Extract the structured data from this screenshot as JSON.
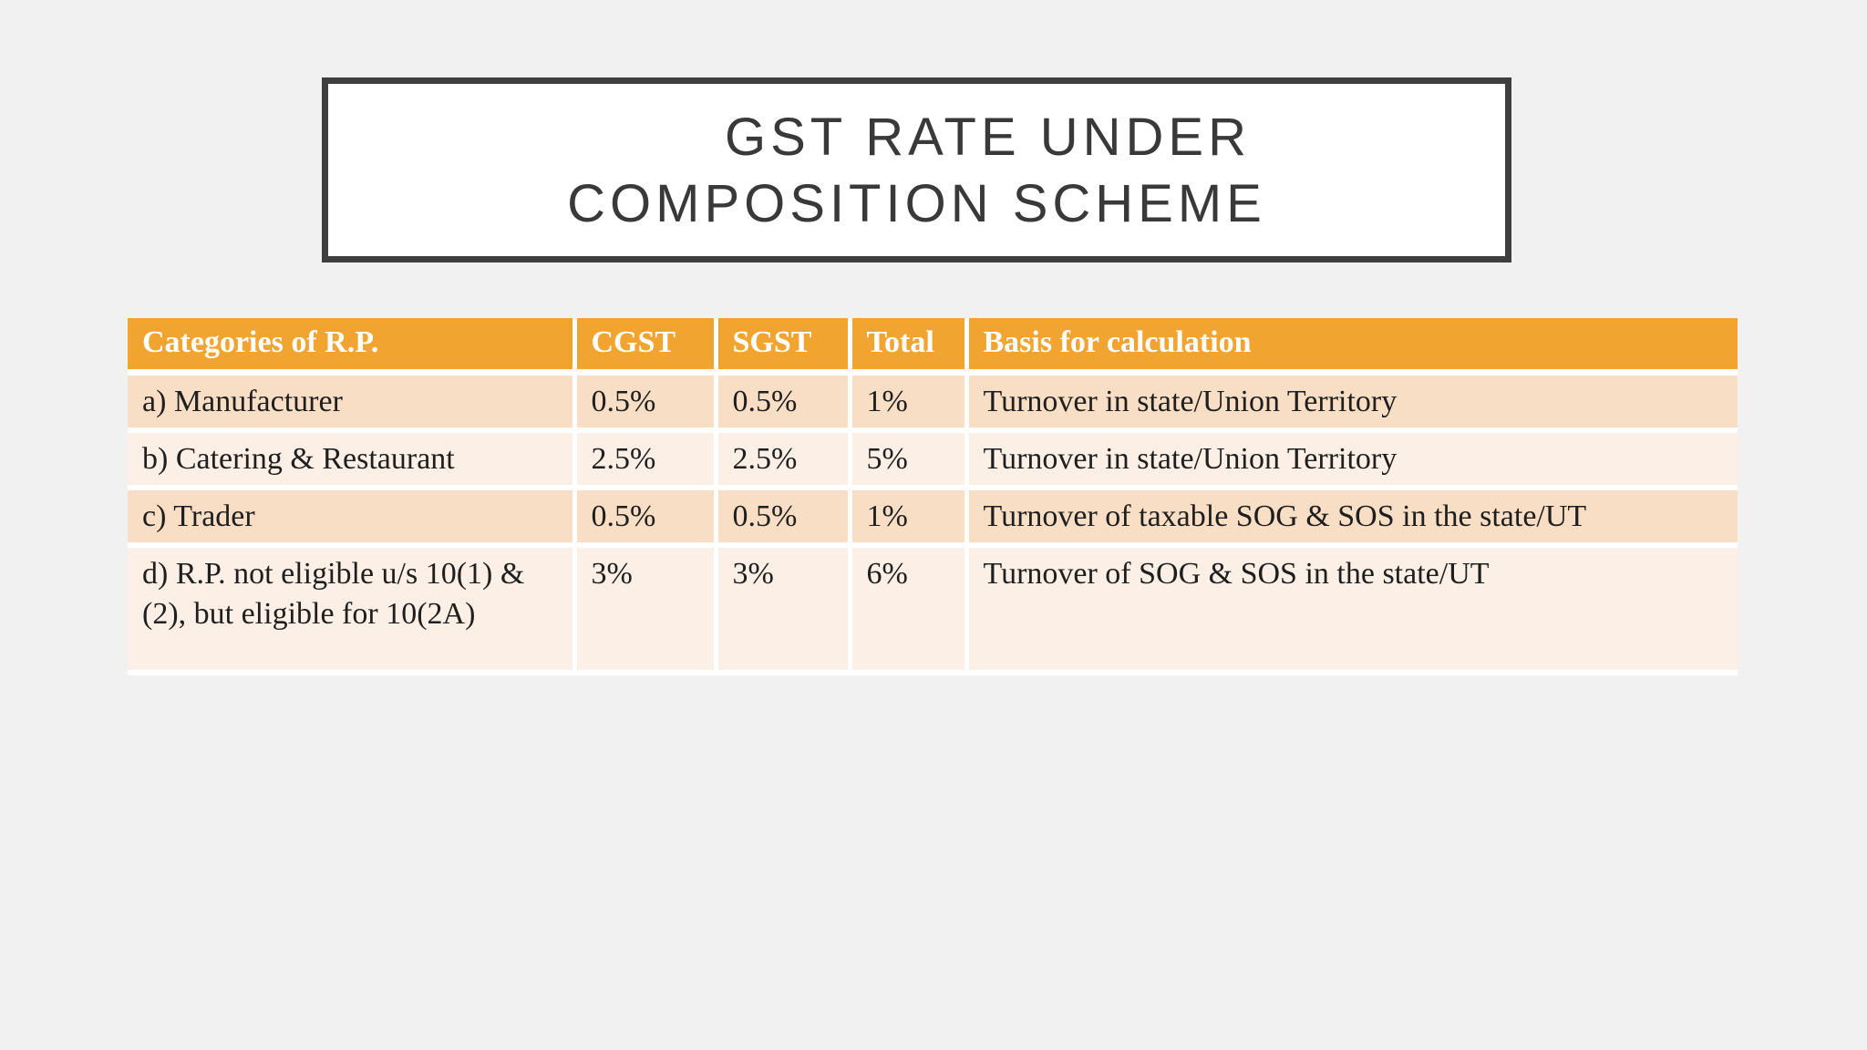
{
  "title": {
    "line1": "GST RATE UNDER",
    "line2": "COMPOSITION SCHEME"
  },
  "table": {
    "columns": [
      "Categories of R.P.",
      "CGST",
      "SGST",
      "Total",
      "Basis for calculation"
    ],
    "column_names": [
      "categories",
      "cgst",
      "sgst",
      "total",
      "basis"
    ],
    "rows": [
      [
        "a) Manufacturer",
        "0.5%",
        "0.5%",
        "1%",
        "Turnover in state/Union Territory"
      ],
      [
        "b) Catering & Restaurant",
        "2.5%",
        "2.5%",
        "5%",
        "Turnover in state/Union Territory"
      ],
      [
        "c) Trader",
        "0.5%",
        "0.5%",
        "1%",
        "Turnover of taxable SOG & SOS in the state/UT"
      ],
      [
        "d) R.P. not eligible u/s 10(1) & (2), but eligible for 10(2A)",
        "3%",
        "3%",
        "6%",
        "Turnover of SOG & SOS in the state/UT"
      ]
    ],
    "row_ids": [
      "row-a",
      "row-b",
      "row-c",
      "row-d"
    ]
  },
  "colors": {
    "page-bg": "#F1F1F1",
    "title-border": "#3F3F3F",
    "title-text": "#393939",
    "title-bg": "#FFFFFF",
    "header-bg": "#F2A431",
    "header-text": "#FFFFFF",
    "band-dark": "#F9DEC6",
    "band-light": "#FBEFE6",
    "body-text": "#1F1F1F",
    "separator": "#FFFFFF"
  }
}
